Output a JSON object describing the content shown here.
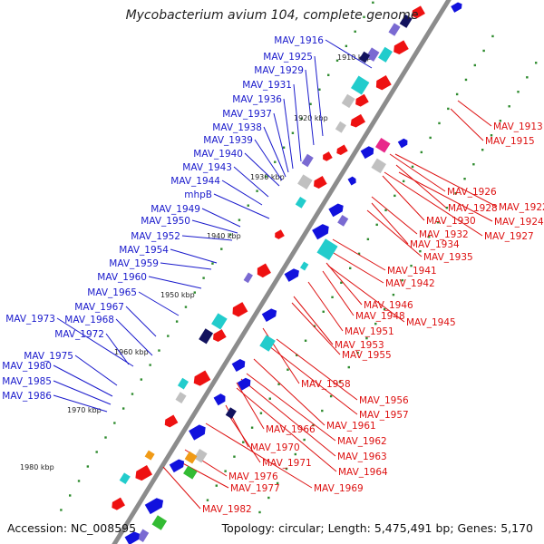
{
  "title": "Mycobacterium avium 104, complete genome",
  "accession_text": "Accession: NC_008595",
  "summary_text": "Topology: circular; Length: 5,475,491 bp; Genes: 5,170",
  "colors": {
    "backbone": "#8c8c8c",
    "forward_label": "#1a1acc",
    "reverse_label": "#dd1111",
    "forward_feature": "#1111dd",
    "reverse_feature": "#ee1111",
    "tick_label": "#222222",
    "scale_dots": "#2e8b2e",
    "rna_cyan": "#22cccc",
    "rna_gray": "#c0c0c0",
    "rna_purple": "#7a6ad2",
    "rna_navy": "#12125e",
    "rna_magenta": "#e8288a",
    "rna_orange": "#f09a16",
    "rna_green": "#33bb33"
  },
  "scale_ticks": [
    "1910 kbp",
    "1920 kbp",
    "1930 kbp",
    "1940 kbp",
    "1950 kbp",
    "1960 kbp",
    "1970 kbp",
    "1980 kbp"
  ],
  "forward_labels": [
    "MAV_1916",
    "MAV_1925",
    "MAV_1929",
    "MAV_1931",
    "MAV_1936",
    "MAV_1937",
    "MAV_1938",
    "MAV_1939",
    "MAV_1940",
    "MAV_1943",
    "MAV_1944",
    "mhpB",
    "MAV_1949",
    "MAV_1950",
    "MAV_1952",
    "MAV_1954",
    "MAV_1959",
    "MAV_1960",
    "MAV_1965",
    "MAV_1967",
    "MAV_1973",
    "MAV_1968",
    "MAV_1972",
    "MAV_1975",
    "MAV_1980",
    "MAV_1985",
    "MAV_1986"
  ],
  "reverse_labels": [
    "MAV_1913",
    "MAV_1915",
    "MAV_1926",
    "MAV_1922",
    "MAV_1928",
    "MAV_1924",
    "MAV_1930",
    "MAV_1927",
    "MAV_1932",
    "MAV_1934",
    "MAV_1935",
    "MAV_1941",
    "MAV_1942",
    "MAV_1946",
    "MAV_1948",
    "MAV_1945",
    "MAV_1951",
    "MAV_1953",
    "MAV_1955",
    "MAV_1958",
    "MAV_1956",
    "MAV_1957",
    "MAV_1961",
    "MAV_1966",
    "MAV_1962",
    "MAV_1963",
    "MAV_1970",
    "MAV_1971",
    "MAV_1964",
    "MAV_1976",
    "MAV_1977",
    "MAV_1969",
    "MAV_1982"
  ]
}
